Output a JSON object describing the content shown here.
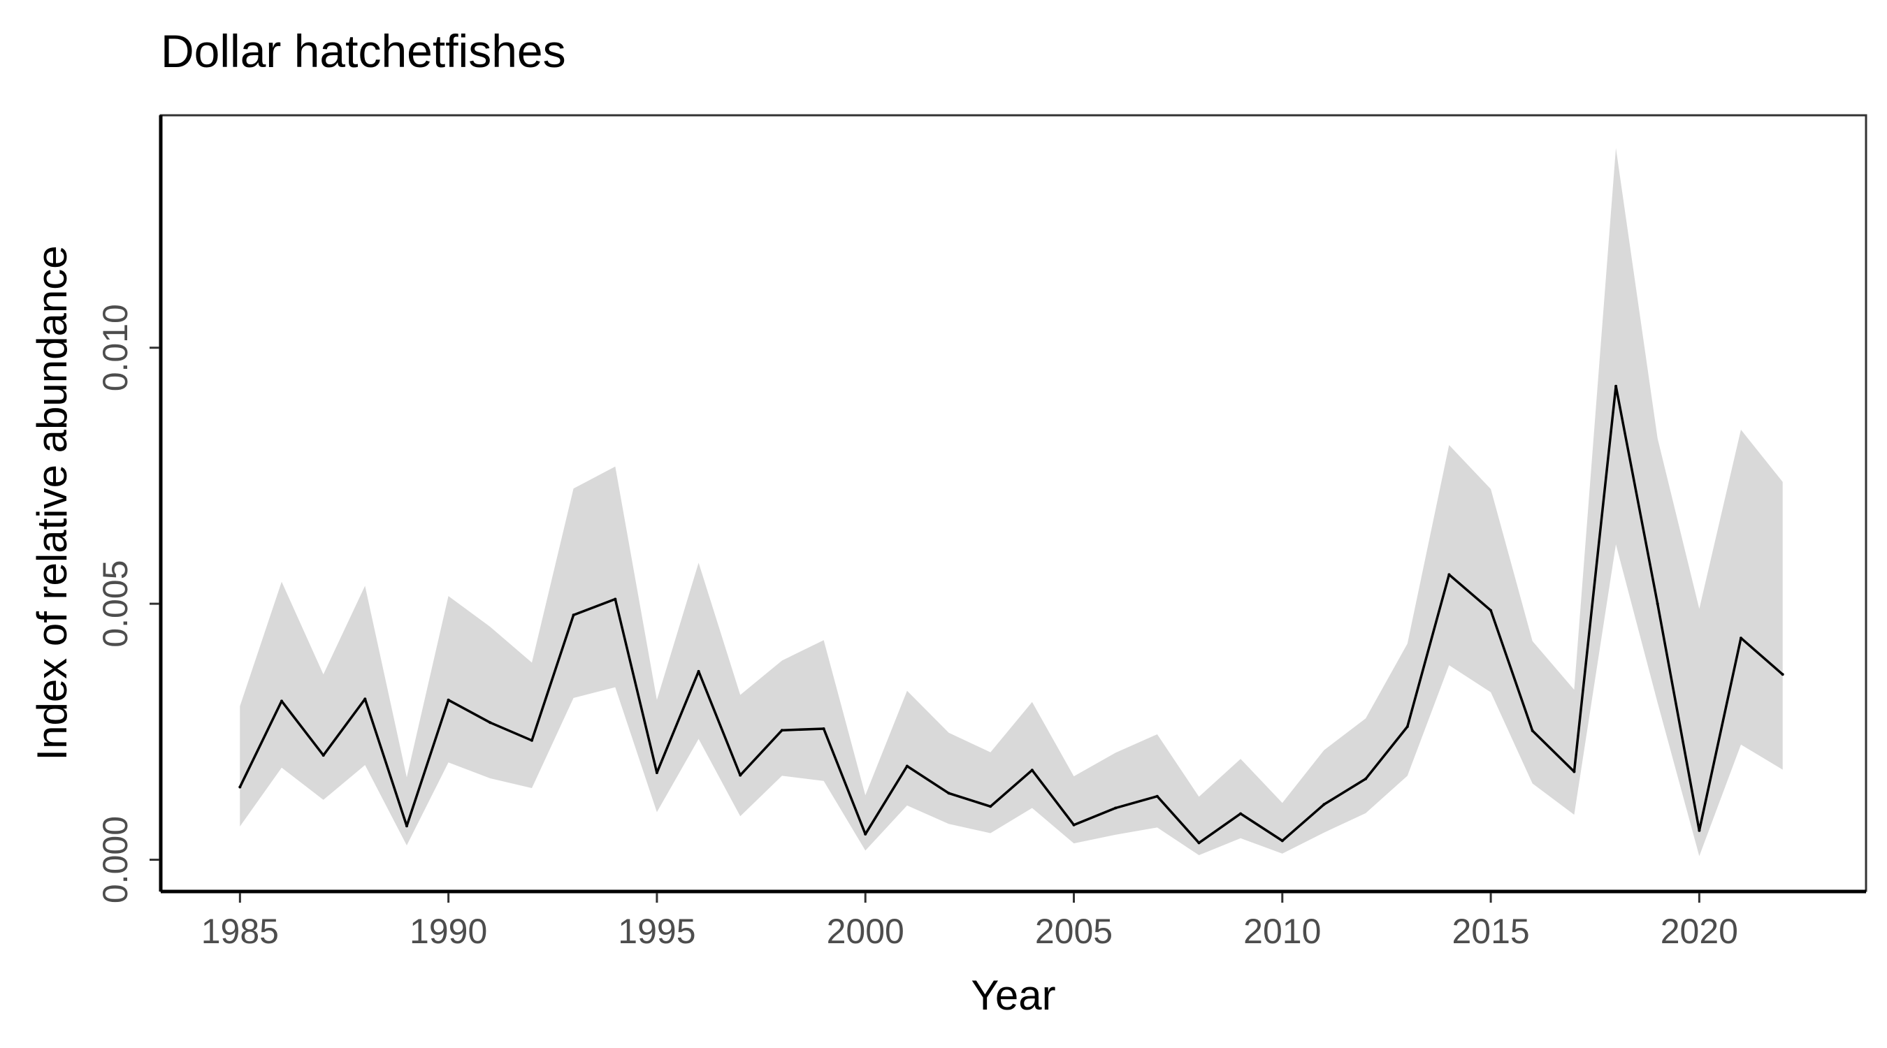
{
  "chart_data": {
    "type": "line",
    "title": "Dollar hatchetfishes",
    "xlabel": "Year",
    "ylabel": "Index of relative abundance",
    "xlim": [
      1983.1,
      2024.0
    ],
    "ylim": [
      -0.00062,
      0.01454
    ],
    "x_ticks": [
      {
        "value": 1985,
        "label": "1985"
      },
      {
        "value": 1990,
        "label": "1990"
      },
      {
        "value": 1995,
        "label": "1995"
      },
      {
        "value": 2000,
        "label": "2000"
      },
      {
        "value": 2005,
        "label": "2005"
      },
      {
        "value": 2010,
        "label": "2010"
      },
      {
        "value": 2015,
        "label": "2015"
      },
      {
        "value": 2020,
        "label": "2020"
      }
    ],
    "y_ticks": [
      {
        "value": 0.0,
        "label": "0.000"
      },
      {
        "value": 0.005,
        "label": "0.005"
      },
      {
        "value": 0.01,
        "label": "0.010"
      }
    ],
    "grid": false,
    "legend": "none",
    "colors": {
      "line": "#000000",
      "ribbon": "#d9d9d9",
      "axis": "#000000",
      "panel_border": "#333333",
      "tick_label": "#4d4d4d"
    },
    "x": [
      1985,
      1986,
      1987,
      1988,
      1989,
      1990,
      1991,
      1992,
      1993,
      1994,
      1995,
      1996,
      1997,
      1998,
      1999,
      2000,
      2001,
      2002,
      2003,
      2004,
      2005,
      2006,
      2007,
      2008,
      2009,
      2010,
      2011,
      2012,
      2013,
      2014,
      2015,
      2016,
      2017,
      2018,
      2019,
      2020,
      2021,
      2022
    ],
    "series": [
      {
        "y": [
          0.00142,
          0.0031,
          0.00204,
          0.00314,
          0.00066,
          0.00312,
          0.00268,
          0.00233,
          0.00478,
          0.00509,
          0.0017,
          0.00368,
          0.00165,
          0.00253,
          0.00256,
          0.0005,
          0.00183,
          0.0013,
          0.00104,
          0.00175,
          0.00068,
          0.00101,
          0.00124,
          0.00033,
          0.0009,
          0.00037,
          0.00108,
          0.00158,
          0.0026,
          0.00557,
          0.00487,
          0.00252,
          0.00172,
          0.00925,
          0.005,
          0.00057,
          0.00433,
          0.00362
        ],
        "lower": [
          0.00065,
          0.0018,
          0.00117,
          0.00185,
          0.00028,
          0.0019,
          0.00159,
          0.0014,
          0.00316,
          0.00337,
          0.00093,
          0.00236,
          0.00085,
          0.00164,
          0.00154,
          0.00018,
          0.00106,
          0.0007,
          0.00052,
          0.00101,
          0.00032,
          0.00049,
          0.00063,
          9e-05,
          0.00042,
          0.00012,
          0.00053,
          0.00091,
          0.00164,
          0.0038,
          0.00327,
          0.00149,
          0.00088,
          0.00616,
          0.00307,
          7e-05,
          0.00225,
          0.00176
        ],
        "upper": [
          0.003,
          0.00543,
          0.00362,
          0.00535,
          0.00161,
          0.00515,
          0.00455,
          0.00385,
          0.00725,
          0.00768,
          0.00312,
          0.0058,
          0.00322,
          0.00389,
          0.00429,
          0.00126,
          0.0033,
          0.00248,
          0.0021,
          0.00308,
          0.00163,
          0.00209,
          0.00245,
          0.00123,
          0.00197,
          0.00111,
          0.00214,
          0.00276,
          0.00422,
          0.0081,
          0.00724,
          0.00427,
          0.00332,
          0.0139,
          0.00823,
          0.0049,
          0.0084,
          0.00738
        ]
      }
    ]
  }
}
